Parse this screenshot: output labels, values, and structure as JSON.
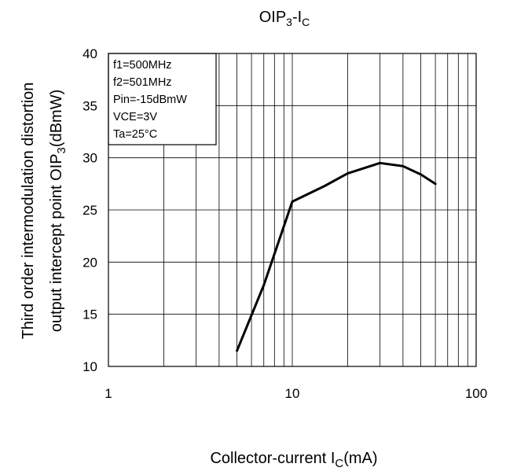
{
  "chart_data": {
    "type": "line",
    "title": {
      "main": "OIP",
      "sub1": "3",
      "mid": "-I",
      "sub2": "C"
    },
    "xlabel": {
      "main": "Collector-current I",
      "sub": "C",
      "tail": "(mA)"
    },
    "ylabel": {
      "line1": "Third order intermodulation distortion",
      "line2_main": "output intercept point OIP",
      "line2_sub": "3",
      "line2_tail": "(dBmW)"
    },
    "xscale": "log",
    "xlim": [
      1,
      100
    ],
    "ylim": [
      10,
      40
    ],
    "x_ticks": [
      "1",
      "10",
      "100"
    ],
    "y_ticks": [
      "10",
      "15",
      "20",
      "25",
      "30",
      "35",
      "40"
    ],
    "grid": true,
    "legend_placement": "top-left",
    "conditions": [
      "f1=500MHz",
      "f2=501MHz",
      "Pin=-15dBmW",
      "VCE=3V",
      "Ta=25°C"
    ],
    "series": [
      {
        "x": [
          5,
          7,
          10,
          15,
          20,
          30,
          40,
          50,
          60
        ],
        "y": [
          11.5,
          17.8,
          25.8,
          27.3,
          28.5,
          29.5,
          29.2,
          28.4,
          27.5
        ]
      }
    ]
  }
}
